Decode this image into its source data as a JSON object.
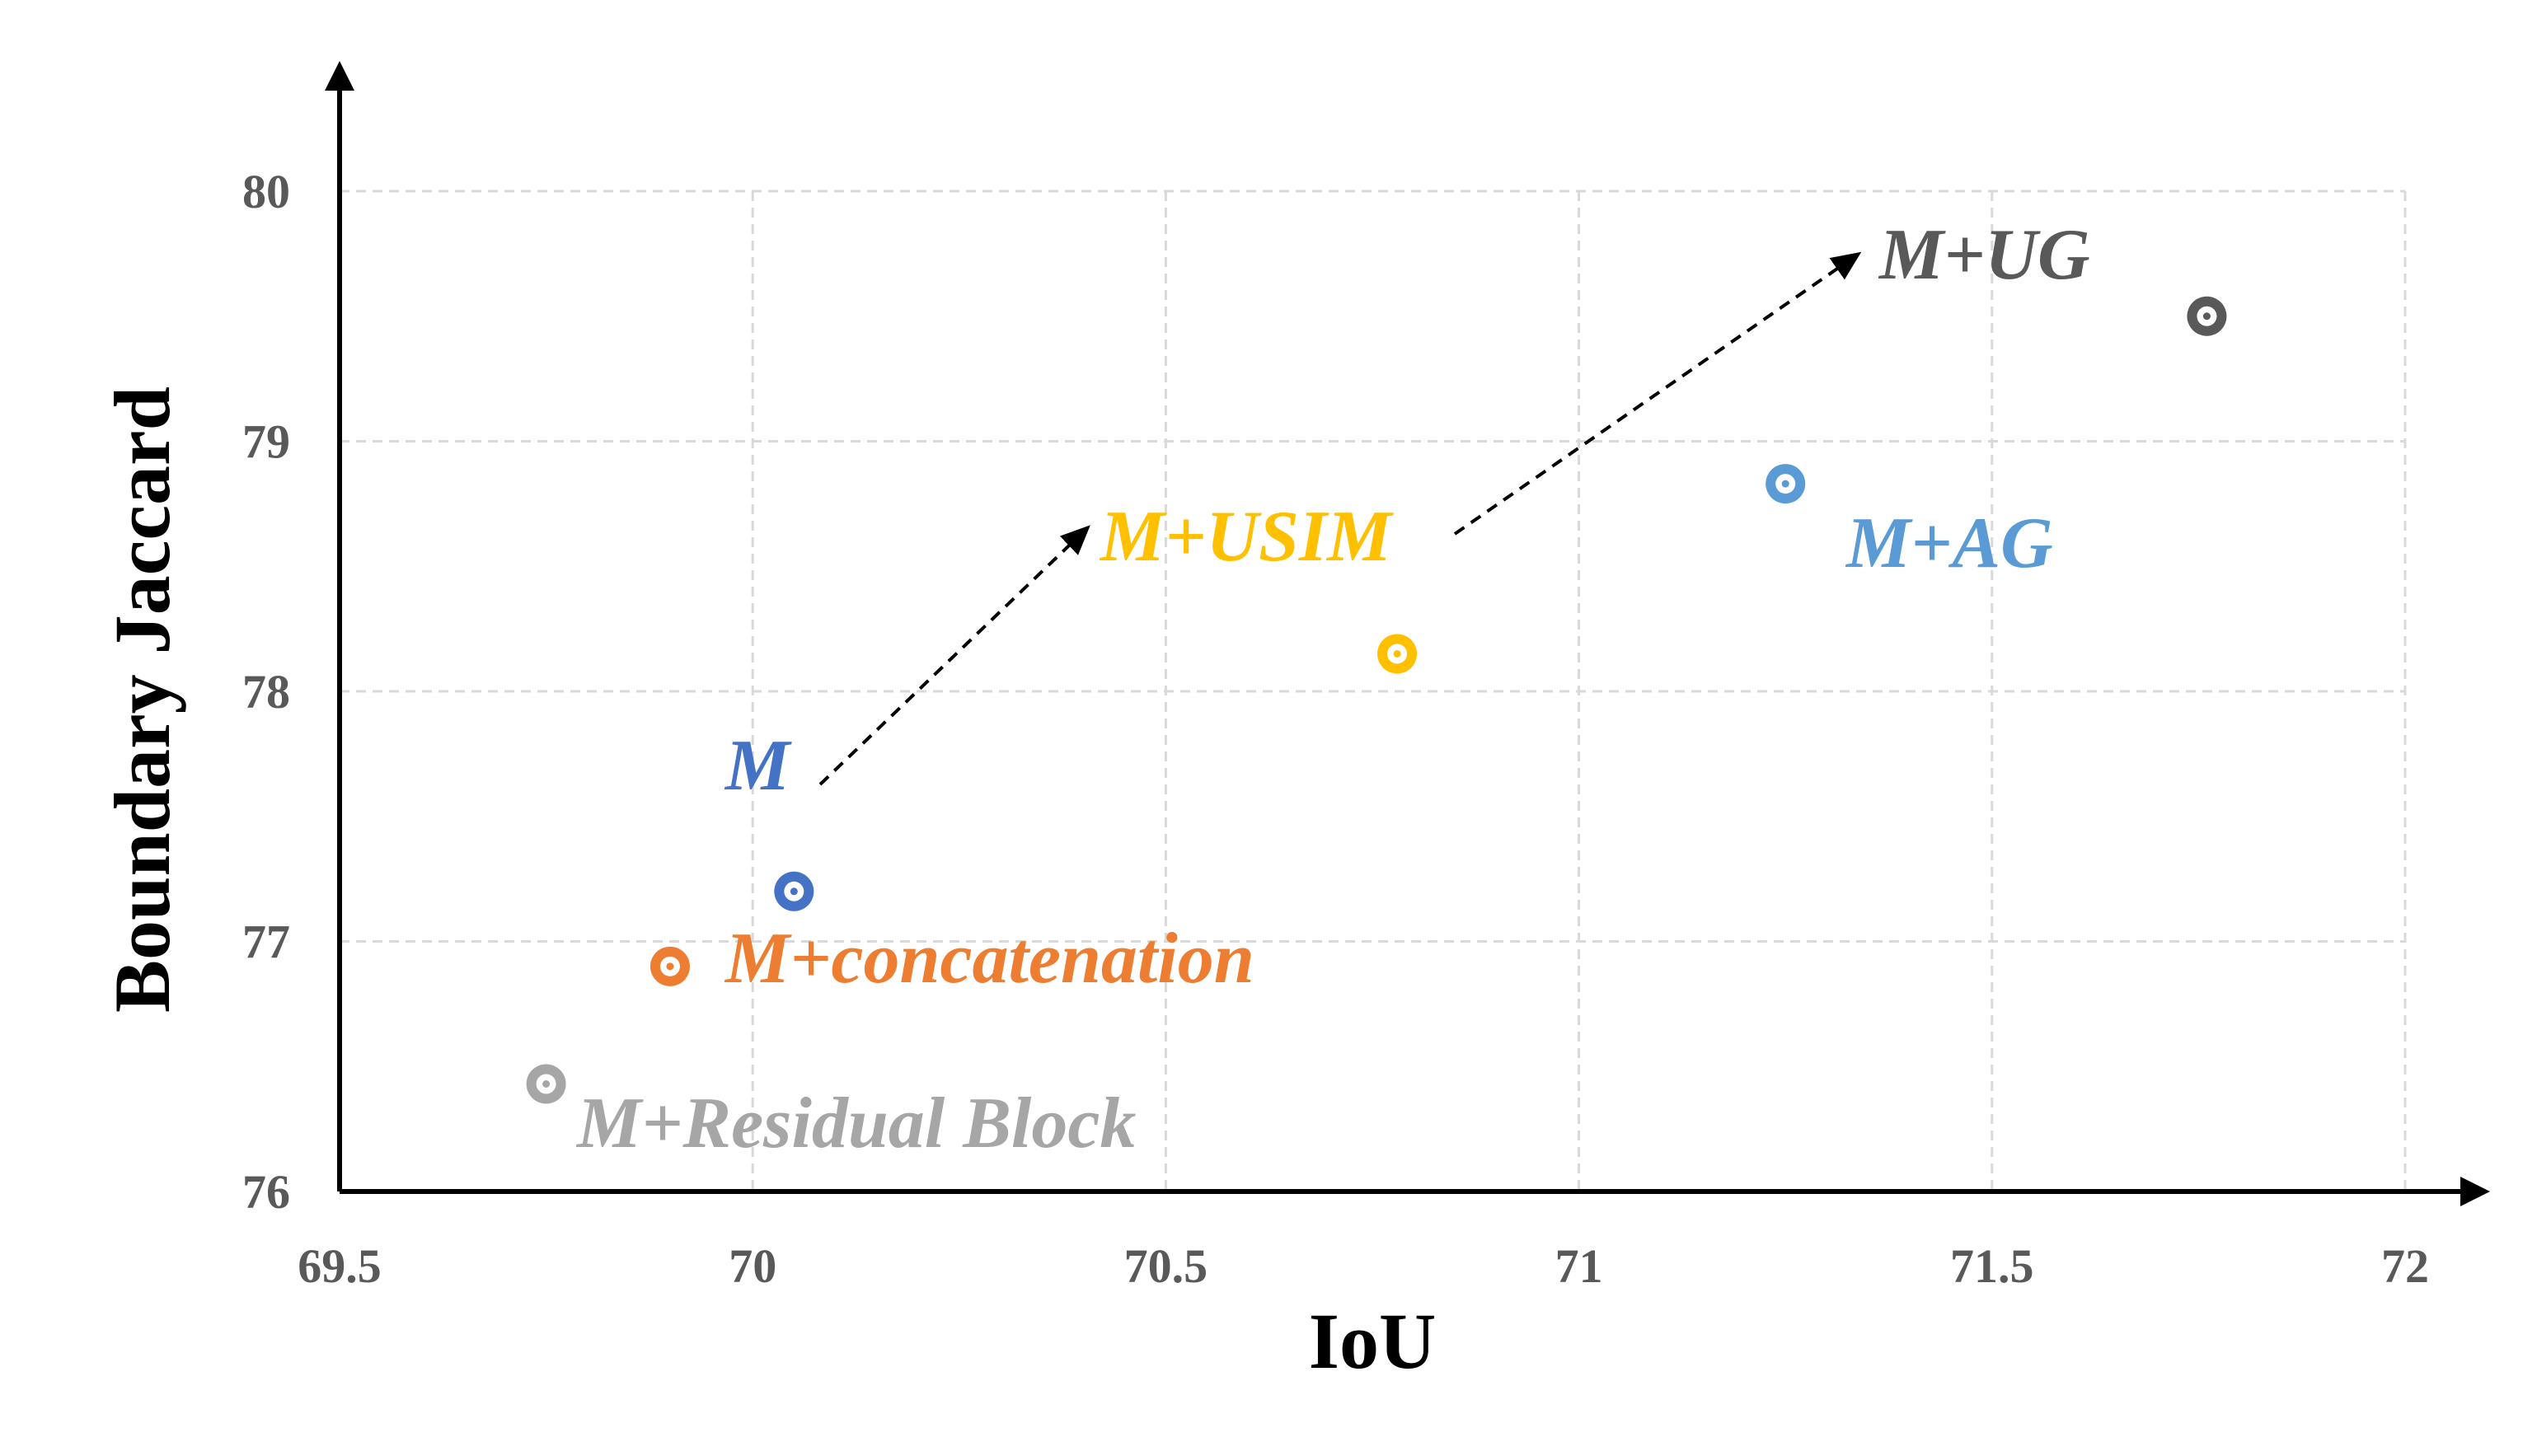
{
  "chart_data": {
    "type": "scatter",
    "title": "",
    "xlabel": "IoU",
    "ylabel": "Boundary Jaccard",
    "xlim": [
      69.5,
      72
    ],
    "ylim": [
      76,
      80
    ],
    "x_ticks": [
      {
        "value": 69.5,
        "label": "69.5"
      },
      {
        "value": 70,
        "label": "70"
      },
      {
        "value": 70.5,
        "label": "70.5"
      },
      {
        "value": 71,
        "label": "71"
      },
      {
        "value": 71.5,
        "label": "71.5"
      },
      {
        "value": 72,
        "label": "72"
      }
    ],
    "y_ticks": [
      {
        "value": 76,
        "label": "76"
      },
      {
        "value": 77,
        "label": "77"
      },
      {
        "value": 78,
        "label": "78"
      },
      {
        "value": 79,
        "label": "79"
      },
      {
        "value": 80,
        "label": "80"
      }
    ],
    "grid": true,
    "legend": "none",
    "points": [
      {
        "label": "M+Residual Block",
        "x": 69.75,
        "y": 76.43,
        "color": "#a6a6a6",
        "label_pos": "below-right"
      },
      {
        "label": "M+concatenation",
        "x": 69.9,
        "y": 76.9,
        "color": "#ed7d31",
        "label_pos": "right"
      },
      {
        "label": "M",
        "x": 70.05,
        "y": 77.2,
        "color": "#4472c4",
        "label_pos": "above-left"
      },
      {
        "label": "M+USIM",
        "x": 70.78,
        "y": 78.15,
        "color": "#ffc000",
        "label_pos": "above-left"
      },
      {
        "label": "M+AG",
        "x": 71.25,
        "y": 78.83,
        "color": "#5b9bd5",
        "label_pos": "below-right"
      },
      {
        "label": "M+UG",
        "x": 71.76,
        "y": 79.5,
        "color": "#595959",
        "label_pos": "above-left"
      }
    ],
    "annotations": [
      {
        "type": "dashed-arrow",
        "from": "M",
        "to": "M+USIM"
      },
      {
        "type": "dashed-arrow",
        "from": "M+USIM",
        "to": "M+UG"
      }
    ]
  }
}
